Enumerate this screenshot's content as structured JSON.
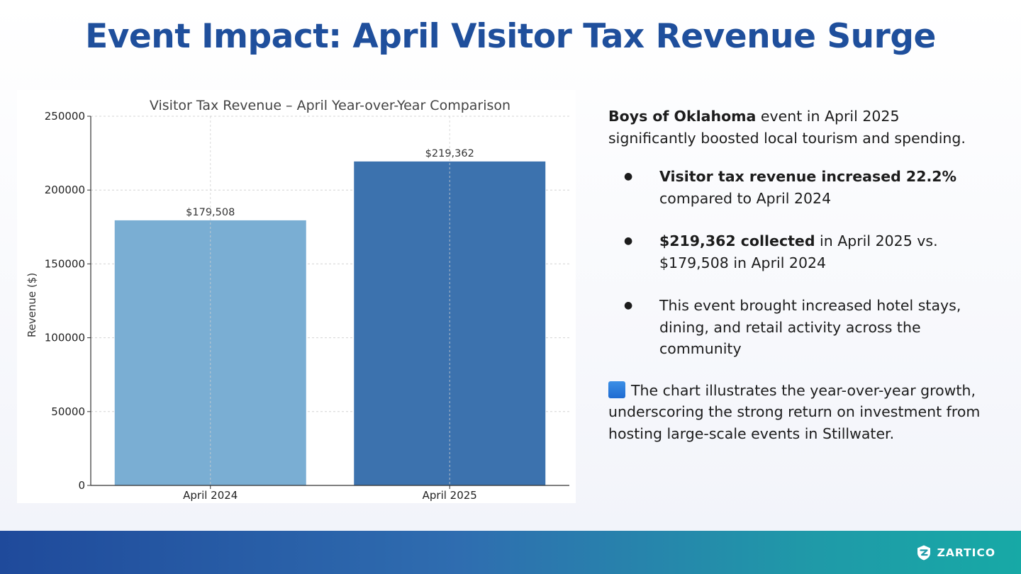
{
  "slide": {
    "title": "Event Impact: April Visitor Tax Revenue Surge"
  },
  "chart_data": {
    "type": "bar",
    "title": "Visitor Tax Revenue – April Year-over-Year Comparison",
    "categories": [
      "April 2024",
      "April 2025"
    ],
    "values": [
      179508,
      219362
    ],
    "value_labels": [
      "$179,508",
      "$219,362"
    ],
    "xlabel": "",
    "ylabel": "Revenue ($)",
    "ylim": [
      0,
      250000
    ],
    "yticks": [
      0,
      50000,
      100000,
      150000,
      200000,
      250000
    ],
    "bar_colors": [
      "#7aaed3",
      "#3c72ae"
    ],
    "grid": true
  },
  "content": {
    "intro_bold": "Boys of Oklahoma",
    "intro_rest": " event in April 2025 significantly boosted local tourism and spending.",
    "bullets": [
      {
        "bold": "Visitor tax revenue increased 22.2%",
        "rest": " compared to April 2024"
      },
      {
        "bold": "$219,362 collected",
        "rest": " in April 2025 vs. $179,508 in April 2024"
      },
      {
        "bold": "",
        "rest": "This event brought increased hotel stays, dining, and retail activity across the community"
      }
    ],
    "bullet_glyph": "●",
    "note_icon": "blue-square-icon",
    "note": "The chart illustrates the year-over-year growth, underscoring the strong return on investment from hosting large-scale events in Stillwater."
  },
  "footer": {
    "logo_icon": "zartico-logo-icon",
    "logo_text": "ZARTICO",
    "gradient": [
      "#1f4a9b",
      "#17a9a6"
    ]
  }
}
